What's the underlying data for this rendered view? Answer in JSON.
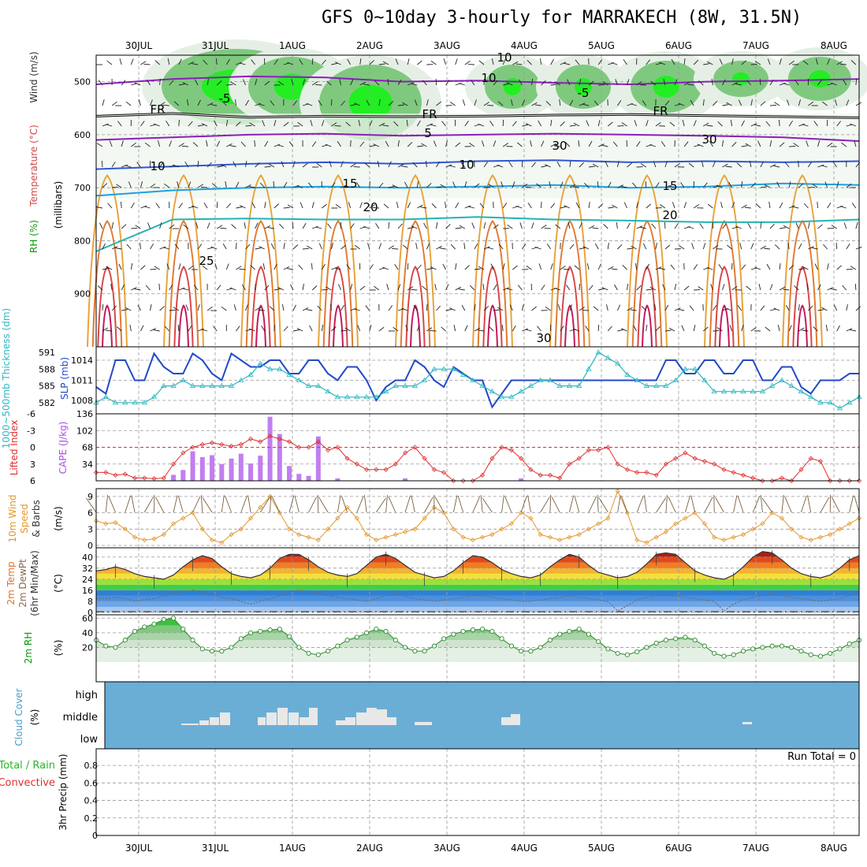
{
  "title": "GFS 0~10day 3-hourly for MARRAKECH (8W, 31.5N)",
  "run_total": "Run Total = 0",
  "chart_data": [
    {
      "type": "heatmap",
      "panel": "upper-air",
      "xlabel_ticks": [
        "30JUL",
        "31JUL",
        "1AUG",
        "2AUG",
        "3AUG",
        "4AUG",
        "5AUG",
        "6AUG",
        "7AUG",
        "8AUG"
      ],
      "ylabel_lines": [
        "RH (%)",
        "Temperature (°C)",
        "Wind (m/s)"
      ],
      "ylabel_units": "(millibars)",
      "yticks": [
        500,
        600,
        700,
        800,
        900
      ],
      "ylim": [
        1000,
        450
      ],
      "contour_labels": [
        "-5",
        "-5",
        "5",
        "10",
        "10",
        "15",
        "15",
        "20",
        "20",
        "25",
        "30",
        "FR",
        "FR",
        "FR",
        "10",
        "30",
        "30",
        "10"
      ],
      "isotherms": [
        {
          "label": "-5",
          "color": "#8b1fb8",
          "p": [
            505,
            495,
            490,
            492,
            500,
            498,
            502,
            505,
            500,
            498,
            495
          ]
        },
        {
          "label": "5",
          "color": "#8b1fb8",
          "p": [
            610,
            605,
            600,
            598,
            602,
            600,
            598,
            600,
            602,
            605,
            612
          ]
        },
        {
          "label": "FR",
          "color": "#000000",
          "p": [
            565,
            560,
            567,
            565,
            566,
            565,
            563,
            562,
            564,
            566,
            568
          ]
        },
        {
          "label": "10",
          "color": "#2f56d6",
          "p": [
            665,
            660,
            655,
            652,
            655,
            650,
            648,
            652,
            650,
            652,
            650
          ]
        },
        {
          "label": "15",
          "color": "#1ba1e0",
          "p": [
            715,
            705,
            700,
            698,
            700,
            698,
            695,
            700,
            698,
            692,
            695
          ]
        },
        {
          "label": "20",
          "color": "#22b3b3",
          "p": [
            820,
            760,
            758,
            760,
            760,
            755,
            760,
            762,
            765,
            765,
            760
          ]
        }
      ]
    },
    {
      "type": "line",
      "panel": "slp-thickness",
      "ylabel_left": "1000~500mb Thickness (dm)",
      "ylabel_right": "SLP (mb)",
      "yticks_left": [
        582,
        585,
        588,
        591
      ],
      "yticks_right": [
        1008,
        1011,
        1014
      ],
      "series": [
        {
          "name": "SLP (mb)",
          "color": "#2249c8",
          "axis": "right",
          "values": [
            1010,
            1009,
            1014,
            1014,
            1011,
            1011,
            1015,
            1013,
            1012,
            1012,
            1015,
            1014,
            1012,
            1011,
            1015,
            1014,
            1013,
            1013,
            1014,
            1014,
            1012,
            1012,
            1014,
            1014,
            1012,
            1011,
            1013,
            1013,
            1011,
            1008,
            1010,
            1011,
            1011,
            1014,
            1013,
            1011,
            1010,
            1013,
            1012,
            1011,
            1011,
            1007,
            1009,
            1011,
            1011,
            1011,
            1011,
            1011,
            1011,
            1011,
            1011,
            1011,
            1011,
            1011,
            1011,
            1011,
            1011,
            1011,
            1011,
            1014,
            1014,
            1012,
            1012,
            1014,
            1014,
            1012,
            1012,
            1014,
            1014,
            1011,
            1011,
            1013,
            1013,
            1010,
            1009,
            1011,
            1011,
            1011,
            1012,
            1012,
            1011,
            1011,
            1011,
            1011,
            1011,
            1011,
            1011,
            1011,
            1011,
            1011,
            1011,
            1011,
            1011,
            1011,
            1011,
            1011,
            1011,
            1011,
            1011,
            1011,
            1011,
            1011,
            1011,
            1011,
            1011,
            1011,
            1011,
            1011,
            1011,
            1011,
            1011,
            1011,
            1011,
            1011,
            1011,
            1011,
            1011,
            1011,
            1011,
            1011,
            1011,
            1011,
            1011,
            1011,
            1011,
            1011,
            1011,
            1011,
            1011,
            1011,
            1011,
            1011,
            1011,
            1011,
            1011,
            1011,
            1011,
            1011,
            1011,
            1011,
            1011,
            1011,
            1011,
            1011,
            1011,
            1011,
            1011,
            1011,
            1011,
            1011,
            1011,
            1011,
            1011,
            1011,
            1011,
            1011,
            1011,
            1011,
            1011,
            1011,
            1011,
            1011
          ]
        },
        {
          "name": "Thickness (dm)",
          "color": "#2db7c0",
          "axis": "left",
          "values": [
            582,
            583,
            582,
            582,
            582,
            582,
            583,
            585,
            585,
            586,
            585,
            585,
            585,
            585,
            585,
            586,
            587,
            589,
            588,
            588,
            587,
            586,
            585,
            585,
            584,
            583,
            583,
            583,
            583,
            583,
            584,
            585,
            585,
            585,
            586,
            588,
            588,
            588,
            587,
            586,
            585,
            584,
            583,
            583,
            584,
            585,
            586,
            586,
            585,
            585,
            585,
            588,
            591,
            590,
            589,
            587,
            586,
            585,
            585,
            585,
            586,
            588,
            588,
            586,
            584,
            584,
            584,
            584,
            584,
            584,
            585,
            586,
            585,
            584,
            583,
            582,
            582,
            581,
            582,
            583,
            584,
            584,
            583,
            583,
            584,
            583,
            583,
            582,
            582,
            582,
            582,
            582,
            582,
            582,
            582,
            582,
            582,
            582,
            582,
            582,
            582,
            582,
            582,
            582,
            582,
            582,
            582,
            582,
            582,
            582,
            582,
            582,
            582,
            582,
            582,
            582,
            582,
            582,
            582,
            582,
            582,
            582,
            582,
            582,
            582,
            582,
            582,
            582,
            582,
            582,
            582,
            582,
            582,
            582,
            582,
            582,
            582,
            582,
            582,
            582,
            582,
            582,
            582,
            582,
            582,
            582,
            582,
            582,
            582,
            582,
            582,
            582,
            582,
            582,
            582,
            582,
            582,
            582,
            582,
            582,
            582,
            582
          ]
        }
      ]
    },
    {
      "type": "bar",
      "panel": "cape-li",
      "ylabel_left": "Lifted Index",
      "ylabel_right": "CAPE (J/kg)",
      "yticks_left": [
        -6,
        -3,
        0,
        3,
        6
      ],
      "yticks_right": [
        34,
        68,
        102,
        136
      ],
      "cape": [
        0,
        0,
        0,
        0,
        0,
        0,
        0,
        0,
        12,
        22,
        60,
        48,
        52,
        34,
        45,
        55,
        35,
        51,
        130,
        95,
        30,
        14,
        10,
        90,
        0,
        5,
        0,
        0,
        0,
        0,
        0,
        0,
        5,
        0,
        0,
        0,
        0,
        0,
        0,
        0,
        0,
        0,
        0,
        0,
        5,
        0,
        0,
        0,
        0,
        0,
        0,
        0,
        0,
        0,
        0,
        0,
        0,
        0,
        0,
        0,
        0,
        0,
        0,
        0,
        0,
        0,
        0,
        0,
        0,
        0,
        0,
        0,
        0,
        0,
        0,
        0,
        0,
        0,
        0,
        0
      ],
      "lifted_index": [
        4.5,
        4.5,
        5,
        4.8,
        5.5,
        5.5,
        5.6,
        5.5,
        3,
        1,
        0,
        -0.5,
        -0.8,
        -0.5,
        -0.2,
        -0.5,
        -1.5,
        -1,
        -2,
        -1.5,
        -1,
        0,
        0,
        -1,
        0.5,
        0,
        2,
        3,
        4,
        4,
        4,
        3,
        1,
        0,
        2,
        4,
        4.5,
        6,
        6,
        6,
        5,
        2,
        0,
        0.5,
        2,
        4,
        5,
        5,
        5.5,
        3,
        2,
        0.5,
        0.5,
        0,
        3,
        4,
        4.5,
        4.5,
        5,
        3,
        2,
        1,
        2,
        2.5,
        3,
        4,
        4.5,
        5,
        5.5,
        6,
        6,
        5.5,
        6,
        4,
        2,
        2.5,
        6,
        6,
        6,
        6
      ]
    },
    {
      "type": "line",
      "panel": "wind-10m",
      "ylabel": "10m Wind Speed & Barbs (m/s)",
      "yticks": [
        0,
        3,
        6,
        9
      ],
      "values": [
        4.5,
        4,
        4.2,
        3,
        1.5,
        1,
        1.2,
        2,
        4,
        5,
        6,
        3,
        1,
        0.5,
        2,
        3,
        5,
        7,
        9,
        6,
        3,
        2,
        1.5,
        1,
        3,
        5,
        7,
        5,
        2,
        1,
        1.5,
        2,
        2.5,
        3,
        5,
        7,
        6,
        3,
        1.5,
        1,
        1.5,
        2,
        3,
        4,
        6,
        5,
        2,
        1.5,
        1,
        1.5,
        2,
        3,
        4,
        5,
        10,
        6,
        1,
        0.5,
        1.5,
        2.5,
        4,
        5,
        6,
        4,
        1.5,
        1,
        1.5,
        2,
        3,
        4,
        6,
        5,
        3,
        1.5,
        1,
        1.5,
        2,
        3,
        4,
        5,
        7,
        6,
        3,
        1.5,
        1
      ]
    },
    {
      "type": "area",
      "panel": "temp-2m",
      "ylabel": "2m Temp 2m DewPt (6hr Min/Max) (°C)",
      "yticks": [
        0,
        8,
        16,
        24,
        32,
        40
      ],
      "temp": [
        30,
        31,
        33,
        31,
        28,
        26,
        25,
        24,
        27,
        33,
        38,
        41,
        39,
        33,
        28,
        26,
        25,
        27,
        32,
        39,
        42,
        42,
        38,
        33,
        29,
        27,
        26,
        28,
        34,
        40,
        42,
        39,
        34,
        29,
        27,
        25,
        26,
        30,
        36,
        41,
        40,
        36,
        31,
        28,
        26,
        25,
        27,
        33,
        38,
        42,
        40,
        34,
        29,
        27,
        25,
        26,
        29,
        35,
        42,
        43,
        42,
        36,
        30,
        27,
        25,
        24,
        27,
        33,
        40,
        44,
        43,
        38,
        32,
        28,
        26,
        25,
        27,
        32,
        38,
        41,
        39,
        34,
        29,
        26,
        23,
        21,
        22,
        27,
        31,
        36,
        38,
        36,
        31,
        27,
        24,
        22,
        21,
        21,
        20,
        20
      ],
      "dewpoint": [
        10,
        10,
        11,
        10,
        8,
        9,
        10,
        12,
        14,
        15,
        16,
        15,
        13,
        11,
        10,
        8,
        6,
        8,
        10,
        12,
        15,
        16,
        15,
        14,
        12,
        11,
        10,
        9,
        8,
        10,
        12,
        13,
        12,
        10,
        9,
        8,
        9,
        10,
        11,
        12,
        12,
        11,
        10,
        9,
        8,
        8,
        9,
        10,
        11,
        12,
        11,
        10,
        9,
        8,
        1,
        5,
        9,
        11,
        12,
        12,
        12,
        11,
        10,
        9,
        8,
        1,
        6,
        9,
        11,
        12,
        13,
        12,
        11,
        10,
        9,
        8,
        9,
        10,
        12,
        14,
        14,
        13,
        12,
        11,
        10,
        10,
        10,
        10,
        11,
        12,
        12,
        11,
        10,
        10,
        10,
        10,
        10,
        10,
        10,
        10
      ]
    },
    {
      "type": "area",
      "panel": "rh-2m",
      "ylabel": "2m RH (%)",
      "yticks": [
        20,
        40,
        60
      ],
      "values": [
        30,
        22,
        20,
        30,
        42,
        48,
        52,
        58,
        60,
        45,
        30,
        18,
        15,
        15,
        20,
        32,
        40,
        42,
        44,
        45,
        35,
        20,
        12,
        10,
        15,
        22,
        30,
        34,
        40,
        45,
        42,
        30,
        20,
        15,
        15,
        22,
        32,
        38,
        42,
        44,
        45,
        42,
        32,
        22,
        15,
        15,
        20,
        30,
        38,
        42,
        45,
        38,
        28,
        18,
        12,
        10,
        14,
        20,
        26,
        30,
        32,
        34,
        30,
        22,
        12,
        8,
        10,
        15,
        18,
        20,
        22,
        22,
        20,
        15,
        10,
        8,
        12,
        18,
        25,
        30,
        32,
        36,
        30,
        22,
        15,
        15,
        25,
        40,
        55,
        62,
        55,
        40,
        25,
        20,
        20,
        30,
        38,
        42,
        46,
        48
      ]
    },
    {
      "type": "heatmap",
      "panel": "cloud-cover",
      "ylabel": "Cloud Cover (%)",
      "ytick_labels": [
        "high",
        "middle",
        "low"
      ]
    },
    {
      "type": "bar",
      "panel": "precip",
      "ylabel_lines": [
        "Total / Rain",
        "Convective",
        "3hr Precip (mm)"
      ],
      "yticks": [
        0,
        0.2,
        0.4,
        0.6,
        0.8
      ],
      "values": [
        0
      ]
    }
  ]
}
